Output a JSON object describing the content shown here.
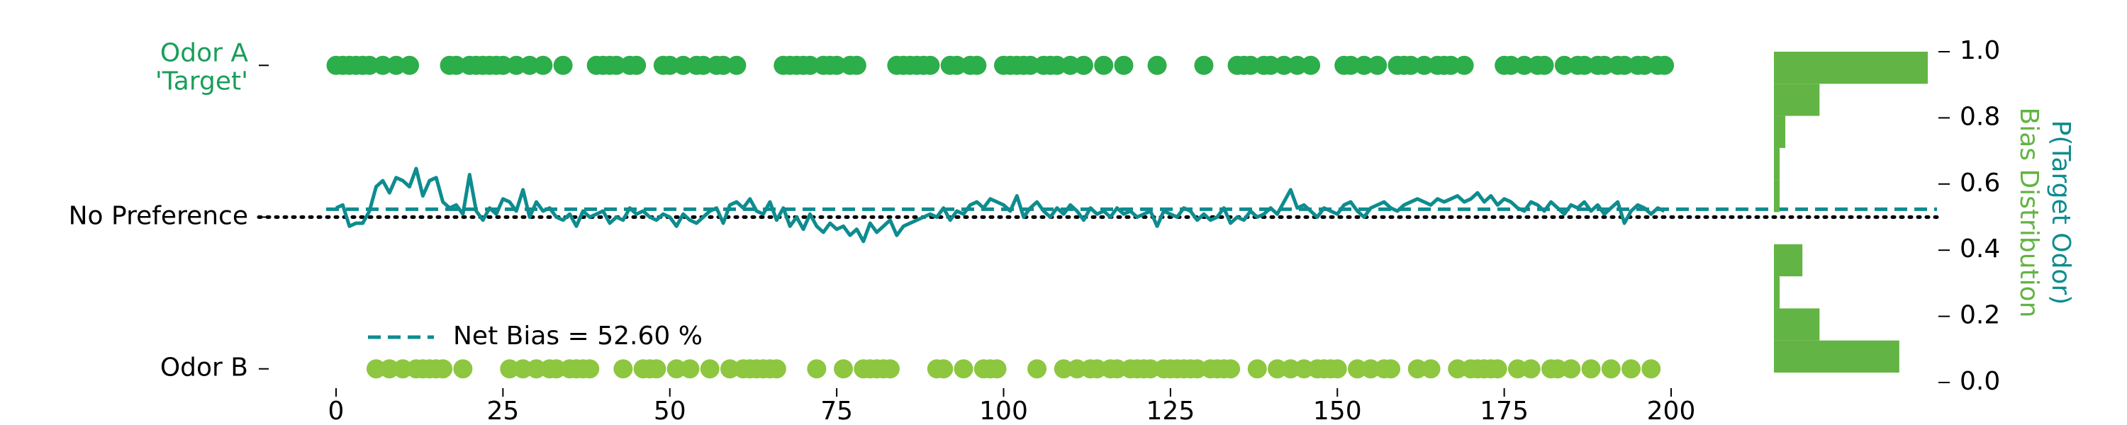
{
  "chart_data": [
    {
      "type": "raster",
      "xlim": [
        0,
        200
      ],
      "xticks": [
        0,
        25,
        50,
        75,
        100,
        125,
        150,
        175,
        200
      ],
      "ylim": [
        -0.045,
        1.045
      ],
      "yticks": [
        {
          "value": 1,
          "label": "Odor A\n'Target'"
        },
        {
          "value": 0.5,
          "label": "No Preference"
        },
        {
          "value": 0,
          "label": "Odor B"
        }
      ],
      "ytick_label_colors": [
        "#1a9e5a",
        "#000000",
        "#000000"
      ],
      "reference_line": {
        "value": 0.5,
        "color": "#000000",
        "style": "dotted"
      },
      "net_bias": {
        "label": "Net Bias = 52.60 %",
        "value": 0.526,
        "color": "#0e8c8f",
        "style": "dashed"
      },
      "legend_location": "lower left",
      "series": [
        {
          "mode": "markers",
          "color": "#2cae4b",
          "x": [
            0,
            1,
            2,
            3,
            4,
            5,
            7,
            9,
            11,
            17,
            18,
            20,
            21,
            22,
            23,
            24,
            25,
            27,
            29,
            31,
            34,
            39,
            40,
            41,
            42,
            44,
            45,
            49,
            50,
            52,
            54,
            55,
            57,
            58,
            60,
            67,
            68,
            69,
            70,
            71,
            73,
            74,
            75,
            77,
            78,
            84,
            85,
            86,
            87,
            88,
            89,
            92,
            93,
            95,
            96,
            100,
            101,
            102,
            103,
            104,
            106,
            107,
            108,
            110,
            112,
            115,
            118,
            123,
            130,
            135,
            136,
            137,
            139,
            140,
            142,
            144,
            146,
            151,
            152,
            154,
            156,
            159,
            160,
            161,
            163,
            165,
            166,
            167,
            169,
            175,
            176,
            178,
            180,
            181,
            184,
            186,
            187,
            189,
            190,
            192,
            193,
            195,
            196,
            198,
            199
          ],
          "values": [
            1,
            1,
            1,
            1,
            1,
            1,
            1,
            1,
            1,
            1,
            1,
            1,
            1,
            1,
            1,
            1,
            1,
            1,
            1,
            1,
            1,
            1,
            1,
            1,
            1,
            1,
            1,
            1,
            1,
            1,
            1,
            1,
            1,
            1,
            1,
            1,
            1,
            1,
            1,
            1,
            1,
            1,
            1,
            1,
            1,
            1,
            1,
            1,
            1,
            1,
            1,
            1,
            1,
            1,
            1,
            1,
            1,
            1,
            1,
            1,
            1,
            1,
            1,
            1,
            1,
            1,
            1,
            1,
            1,
            1,
            1,
            1,
            1,
            1,
            1,
            1,
            1,
            1,
            1,
            1,
            1,
            1,
            1,
            1,
            1,
            1,
            1,
            1,
            1,
            1,
            1,
            1,
            1,
            1,
            1,
            1,
            1,
            1,
            1,
            1,
            1,
            1,
            1,
            1,
            1
          ]
        },
        {
          "mode": "markers",
          "color": "#8dc63f",
          "x": [
            6,
            8,
            10,
            12,
            13,
            14,
            15,
            16,
            19,
            26,
            28,
            30,
            32,
            33,
            35,
            36,
            37,
            38,
            43,
            46,
            47,
            48,
            51,
            53,
            56,
            59,
            61,
            62,
            63,
            64,
            65,
            66,
            72,
            76,
            79,
            80,
            81,
            82,
            83,
            90,
            91,
            94,
            97,
            98,
            99,
            105,
            109,
            111,
            113,
            114,
            116,
            117,
            119,
            120,
            121,
            122,
            124,
            125,
            126,
            127,
            128,
            129,
            131,
            132,
            133,
            134,
            138,
            141,
            143,
            145,
            147,
            148,
            149,
            150,
            153,
            155,
            157,
            158,
            162,
            164,
            168,
            170,
            171,
            172,
            173,
            174,
            177,
            179,
            182,
            183,
            185,
            188,
            191,
            194,
            197
          ],
          "values": [
            0,
            0,
            0,
            0,
            0,
            0,
            0,
            0,
            0,
            0,
            0,
            0,
            0,
            0,
            0,
            0,
            0,
            0,
            0,
            0,
            0,
            0,
            0,
            0,
            0,
            0,
            0,
            0,
            0,
            0,
            0,
            0,
            0,
            0,
            0,
            0,
            0,
            0,
            0,
            0,
            0,
            0,
            0,
            0,
            0,
            0,
            0,
            0,
            0,
            0,
            0,
            0,
            0,
            0,
            0,
            0,
            0,
            0,
            0,
            0,
            0,
            0,
            0,
            0,
            0,
            0,
            0,
            0,
            0,
            0,
            0,
            0,
            0,
            0,
            0,
            0,
            0,
            0,
            0,
            0,
            0,
            0,
            0,
            0,
            0,
            0,
            0,
            0,
            0,
            0,
            0,
            0,
            0,
            0,
            0
          ]
        },
        {
          "mode": "line",
          "color": "#0e8c8f",
          "x": [
            0,
            1,
            2,
            3,
            4,
            5,
            6,
            7,
            8,
            9,
            10,
            11,
            12,
            13,
            14,
            15,
            16,
            17,
            18,
            19,
            20,
            21,
            22,
            23,
            24,
            25,
            26,
            27,
            28,
            29,
            30,
            31,
            32,
            33,
            34,
            35,
            36,
            37,
            38,
            39,
            40,
            41,
            42,
            43,
            44,
            45,
            46,
            47,
            48,
            49,
            50,
            51,
            52,
            53,
            54,
            55,
            56,
            57,
            58,
            59,
            60,
            61,
            62,
            63,
            64,
            65,
            66,
            67,
            68,
            69,
            70,
            71,
            72,
            73,
            74,
            75,
            76,
            77,
            78,
            79,
            80,
            81,
            82,
            83,
            84,
            85,
            86,
            87,
            88,
            89,
            90,
            91,
            92,
            93,
            94,
            95,
            96,
            97,
            98,
            99,
            100,
            101,
            102,
            103,
            104,
            105,
            106,
            107,
            108,
            109,
            110,
            111,
            112,
            113,
            114,
            115,
            116,
            117,
            118,
            119,
            120,
            121,
            122,
            123,
            124,
            125,
            126,
            127,
            128,
            129,
            130,
            131,
            132,
            133,
            134,
            135,
            136,
            137,
            138,
            139,
            140,
            141,
            142,
            143,
            144,
            145,
            146,
            147,
            148,
            149,
            150,
            151,
            152,
            153,
            154,
            155,
            156,
            157,
            158,
            159,
            160,
            161,
            162,
            163,
            164,
            165,
            166,
            167,
            168,
            169,
            170,
            171,
            172,
            173,
            174,
            175,
            176,
            177,
            178,
            179,
            180,
            181,
            182,
            183,
            184,
            185,
            186,
            187,
            188,
            189,
            190,
            191,
            192,
            193,
            194,
            195,
            196,
            197,
            198,
            199
          ],
          "values": [
            0.53,
            0.54,
            0.47,
            0.48,
            0.48,
            0.52,
            0.6,
            0.62,
            0.58,
            0.63,
            0.62,
            0.6,
            0.66,
            0.57,
            0.62,
            0.63,
            0.55,
            0.53,
            0.54,
            0.51,
            0.64,
            0.52,
            0.49,
            0.53,
            0.51,
            0.56,
            0.55,
            0.52,
            0.59,
            0.5,
            0.55,
            0.52,
            0.53,
            0.5,
            0.49,
            0.51,
            0.47,
            0.52,
            0.5,
            0.51,
            0.52,
            0.48,
            0.5,
            0.49,
            0.53,
            0.51,
            0.52,
            0.5,
            0.49,
            0.51,
            0.5,
            0.47,
            0.51,
            0.49,
            0.48,
            0.5,
            0.52,
            0.53,
            0.48,
            0.54,
            0.55,
            0.53,
            0.56,
            0.52,
            0.51,
            0.55,
            0.49,
            0.53,
            0.47,
            0.5,
            0.46,
            0.51,
            0.47,
            0.45,
            0.48,
            0.46,
            0.47,
            0.44,
            0.46,
            0.42,
            0.48,
            0.45,
            0.47,
            0.49,
            0.44,
            0.47,
            0.48,
            0.49,
            0.5,
            0.51,
            0.5,
            0.53,
            0.49,
            0.52,
            0.51,
            0.54,
            0.55,
            0.53,
            0.56,
            0.55,
            0.54,
            0.52,
            0.57,
            0.5,
            0.53,
            0.55,
            0.52,
            0.5,
            0.53,
            0.51,
            0.54,
            0.52,
            0.49,
            0.53,
            0.51,
            0.52,
            0.5,
            0.53,
            0.51,
            0.52,
            0.5,
            0.51,
            0.52,
            0.47,
            0.52,
            0.51,
            0.5,
            0.53,
            0.52,
            0.49,
            0.51,
            0.49,
            0.5,
            0.53,
            0.48,
            0.5,
            0.49,
            0.52,
            0.5,
            0.51,
            0.53,
            0.51,
            0.55,
            0.59,
            0.53,
            0.54,
            0.52,
            0.5,
            0.53,
            0.52,
            0.51,
            0.54,
            0.55,
            0.52,
            0.5,
            0.53,
            0.54,
            0.55,
            0.53,
            0.52,
            0.54,
            0.55,
            0.56,
            0.55,
            0.54,
            0.56,
            0.55,
            0.56,
            0.57,
            0.55,
            0.56,
            0.58,
            0.55,
            0.57,
            0.54,
            0.56,
            0.55,
            0.53,
            0.52,
            0.55,
            0.54,
            0.52,
            0.55,
            0.53,
            0.51,
            0.54,
            0.53,
            0.55,
            0.52,
            0.54,
            0.51,
            0.53,
            0.55,
            0.48,
            0.52,
            0.54,
            0.53,
            0.51,
            0.53,
            0.52
          ]
        }
      ]
    },
    {
      "type": "histogram",
      "orientation": "horizontal",
      "color": "#62b444",
      "bins": [
        0.03,
        0.127,
        0.224,
        0.321,
        0.418,
        0.515,
        0.612,
        0.709,
        0.806,
        0.903,
        1.0
      ],
      "values": [
        22,
        8,
        1,
        5,
        0,
        1,
        1,
        2,
        8,
        27
      ],
      "xlim": [
        0,
        27
      ],
      "ylim": [
        0,
        1
      ],
      "yticks": [
        {
          "value": 0,
          "label": "0.0"
        },
        {
          "value": 0.2,
          "label": "0.2"
        },
        {
          "value": 0.4,
          "label": "0.4"
        },
        {
          "value": 0.6,
          "label": "0.6"
        },
        {
          "value": 0.8,
          "label": "0.8"
        },
        {
          "value": 1,
          "label": "1.0"
        }
      ],
      "ylabels": [
        {
          "text": "P(Target Odor)",
          "color": "#0e8c8f"
        },
        {
          "text": "Bias Distribution",
          "color": "#62b444"
        }
      ]
    }
  ]
}
